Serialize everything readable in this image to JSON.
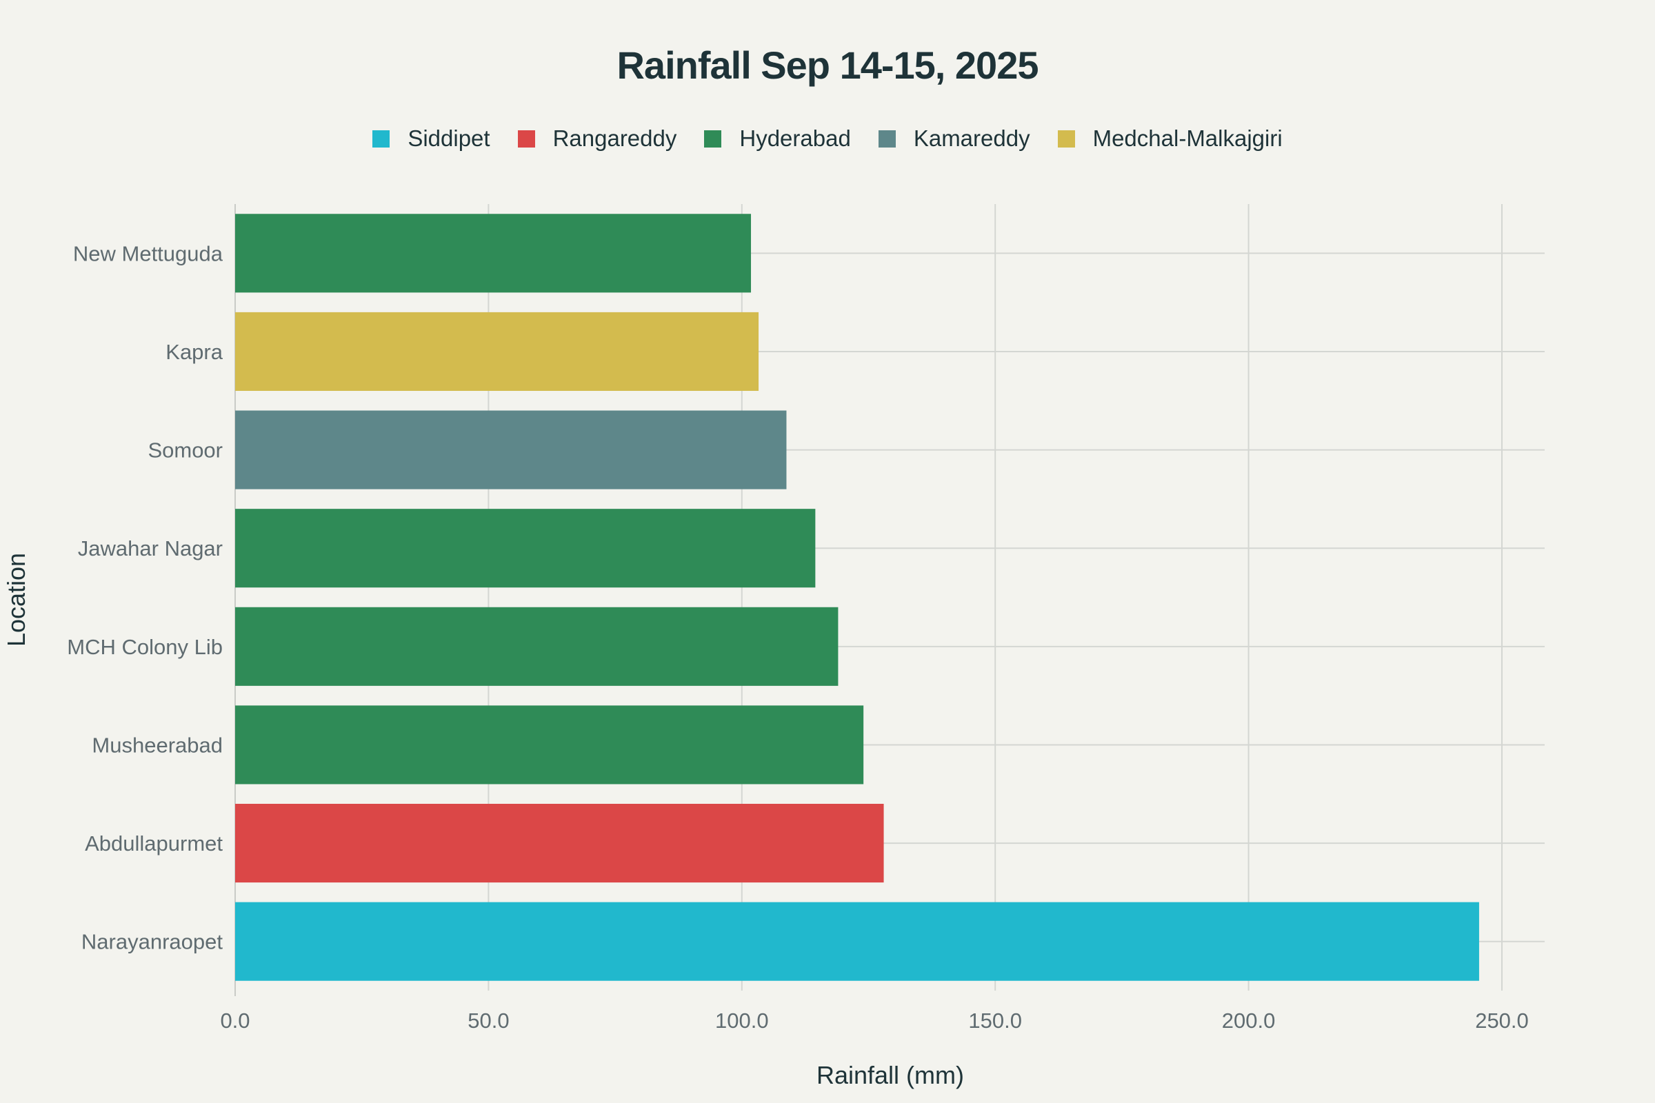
{
  "chart_data": {
    "type": "bar",
    "orientation": "horizontal",
    "title": "Rainfall Sep 14-15, 2025",
    "xlabel": "Rainfall (mm)",
    "ylabel": "Location",
    "xlim": [
      0,
      258
    ],
    "x_ticks": [
      "0.0",
      "50.0",
      "100.0",
      "150.0",
      "200.0",
      "250.0"
    ],
    "x_tick_values": [
      0,
      50,
      100,
      150,
      200,
      250
    ],
    "grid": true,
    "legend_placement": "top-center",
    "legend": [
      {
        "name": "Siddipet",
        "color": "#21b8cd"
      },
      {
        "name": "Rangareddy",
        "color": "#db4747"
      },
      {
        "name": "Hyderabad",
        "color": "#2f8b57"
      },
      {
        "name": "Kamareddy",
        "color": "#5e878a"
      },
      {
        "name": "Medchal-Malkajgiri",
        "color": "#d3bb4e"
      }
    ],
    "categories": [
      "New Mettuguda",
      "Kapra",
      "Somoor",
      "Jawahar Nagar",
      "MCH Colony Lib",
      "Musheerabad",
      "Abdullapurmet",
      "Narayanraopet"
    ],
    "values": [
      101.8,
      103.3,
      108.8,
      114.5,
      119.0,
      124.0,
      128.0,
      245.5
    ],
    "bar_groups": [
      "Hyderabad",
      "Medchal-Malkajgiri",
      "Kamareddy",
      "Hyderabad",
      "Hyderabad",
      "Hyderabad",
      "Rangareddy",
      "Siddipet"
    ]
  }
}
